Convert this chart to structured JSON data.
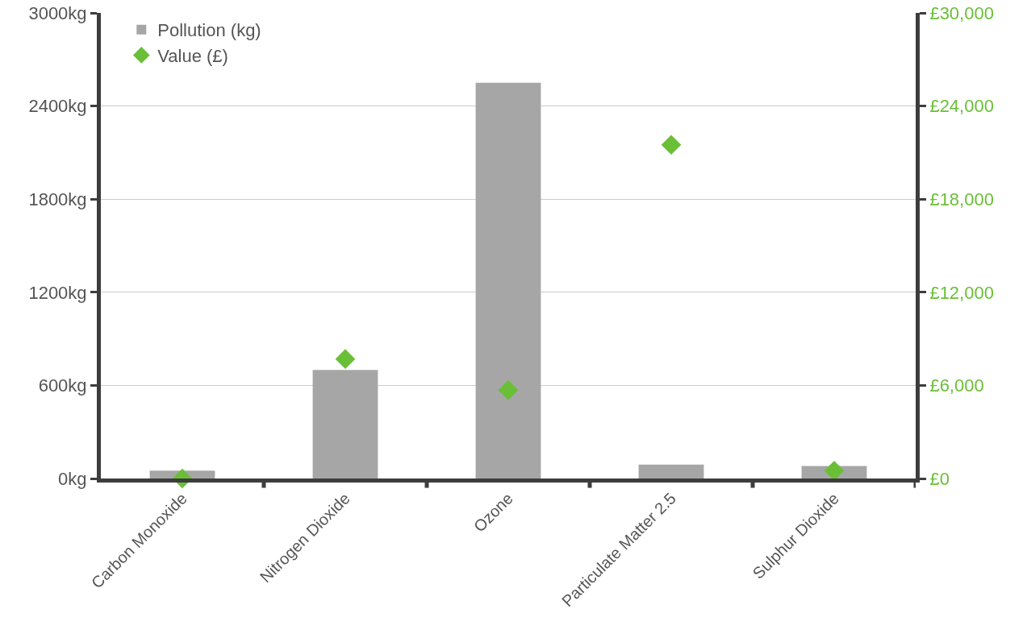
{
  "chart_data": {
    "type": "bar",
    "categories": [
      "Carbon Monoxide",
      "Nitrogen Dioxide",
      "Ozone",
      "Particulate Matter 2.5",
      "Sulphur Dioxide"
    ],
    "series": [
      {
        "name": "Pollution (kg)",
        "color": "#a6a6a6",
        "values": [
          50,
          700,
          2550,
          90,
          80
        ]
      },
      {
        "name": "Value (£)",
        "type": "scatter",
        "axis": "y2",
        "marker": "diamond",
        "color": "#6abf36",
        "values": [
          0,
          7700,
          5700,
          21500,
          500
        ]
      }
    ],
    "ylim": [
      0,
      3000
    ],
    "yticks": [
      {
        "value": 0,
        "label": "0kg"
      },
      {
        "value": 600,
        "label": "600kg"
      },
      {
        "value": 1200,
        "label": "1200kg"
      },
      {
        "value": 1800,
        "label": "1800kg"
      },
      {
        "value": 2400,
        "label": "2400kg"
      },
      {
        "value": 3000,
        "label": "3000kg"
      }
    ],
    "y2lim": [
      0,
      30000
    ],
    "y2ticks": [
      {
        "value": 0,
        "label": "£0"
      },
      {
        "value": 6000,
        "label": "£6,000"
      },
      {
        "value": 12000,
        "label": "£12,000"
      },
      {
        "value": 18000,
        "label": "£18,000"
      },
      {
        "value": 24000,
        "label": "£24,000"
      },
      {
        "value": 30000,
        "label": "£30,000"
      }
    ],
    "grid": "y",
    "legend": "top left"
  }
}
